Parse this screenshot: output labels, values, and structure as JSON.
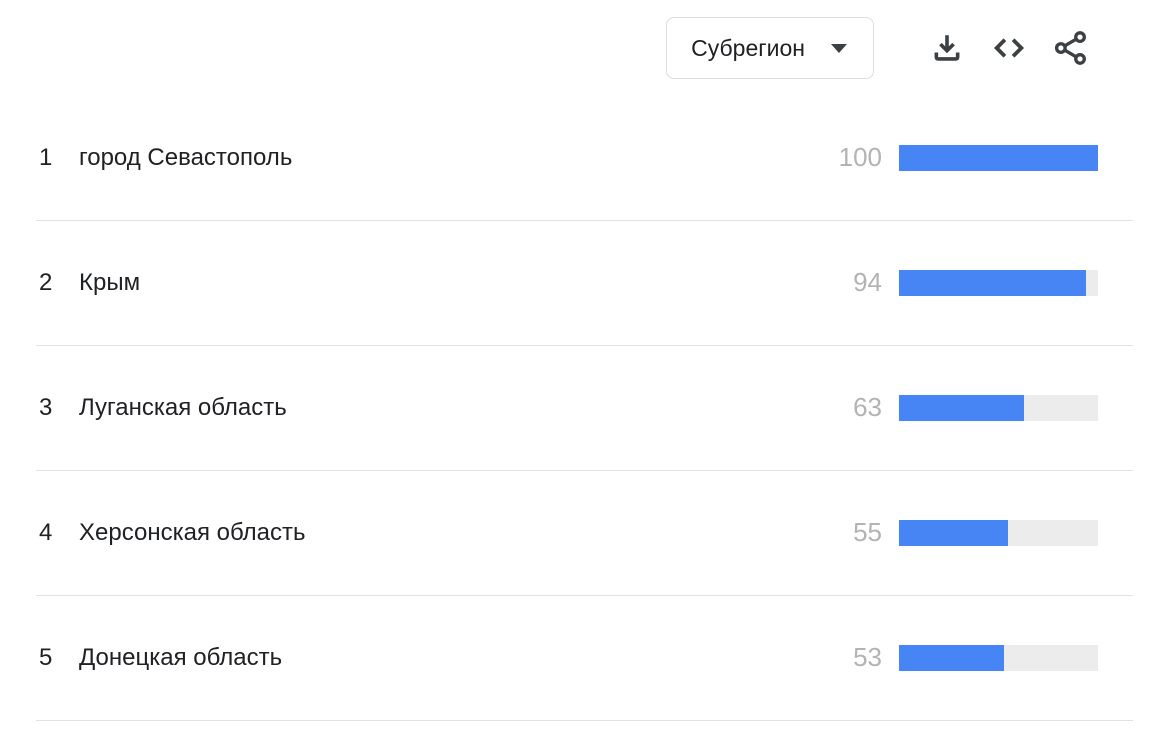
{
  "header": {
    "dropdown": {
      "label": "Субрегион"
    },
    "actions": {
      "download": "download-icon",
      "embed": "embed-code-icon",
      "share": "share-icon"
    }
  },
  "rows": [
    {
      "rank": "1",
      "label": "город Севастополь",
      "value": 100
    },
    {
      "rank": "2",
      "label": "Крым",
      "value": 94
    },
    {
      "rank": "3",
      "label": "Луганская область",
      "value": 63
    },
    {
      "rank": "4",
      "label": "Херсонская область",
      "value": 55
    },
    {
      "rank": "5",
      "label": "Донецкая область",
      "value": 53
    }
  ],
  "chart_data": {
    "type": "bar",
    "orientation": "horizontal",
    "categories": [
      "город Севастополь",
      "Крым",
      "Луганская область",
      "Херсонская область",
      "Донецкая область"
    ],
    "values": [
      100,
      94,
      63,
      55,
      53
    ],
    "ranks": [
      1,
      2,
      3,
      4,
      5
    ],
    "xlim": [
      0,
      100
    ],
    "title": "",
    "xlabel": "",
    "ylabel": "",
    "legend": false,
    "grid": false
  },
  "colors": {
    "bar_fill": "#4785f4",
    "bar_track": "#ececec",
    "value_text": "#b3b3b3",
    "label_text": "#202124",
    "icon": "#3c4043",
    "divider": "#e2e2e2",
    "dropdown_border": "#dadce0"
  }
}
